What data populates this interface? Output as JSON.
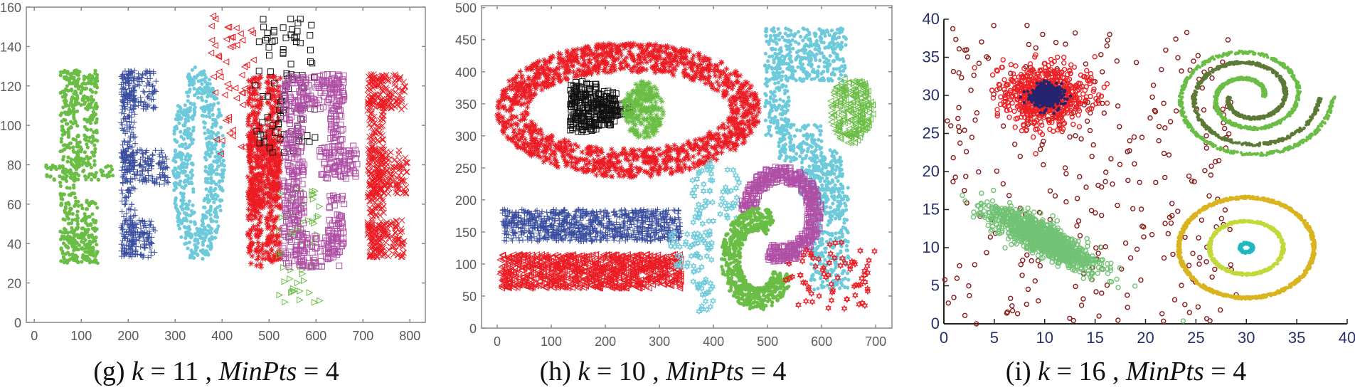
{
  "colors": {
    "frame": "#8a8a8a",
    "axis_dark": "#222222"
  },
  "chart_data": [
    {
      "id": "g",
      "type": "scatter",
      "caption": {
        "label": "(g)",
        "k_symbol": "k",
        "k_value": "11",
        "sep": ",",
        "minpts_symbol": "MinPts",
        "minpts_value": "4"
      },
      "xlim": [
        -17,
        833
      ],
      "ylim": [
        0,
        160
      ],
      "xticks": [
        0,
        100,
        200,
        300,
        400,
        500,
        600,
        700,
        800
      ],
      "yticks": [
        0,
        20,
        40,
        60,
        80,
        100,
        120,
        140,
        160
      ],
      "xtick_labels": [
        "0",
        "100",
        "200",
        "300",
        "400",
        "500",
        "600",
        "700",
        "800"
      ],
      "ytick_labels": [
        "0",
        "20",
        "40",
        "60",
        "80",
        "100",
        "120",
        "140",
        "160"
      ],
      "frame": "box",
      "grid": false,
      "legend": "none",
      "clusters": [
        {
          "color": "#6abd45",
          "marker": "dot",
          "points": 700,
          "shape": "rects",
          "rects": [
            [
              55,
              95,
              30,
              128
            ],
            [
              60,
              135,
              108,
              128
            ],
            [
              105,
              135,
              92,
              125
            ],
            [
              25,
              170,
              72,
              80
            ],
            [
              90,
              130,
              80,
              92
            ],
            [
              100,
              135,
              30,
              62
            ],
            [
              60,
              130,
              30,
              48
            ]
          ]
        },
        {
          "color": "#3a4ea0",
          "marker": "plus",
          "points": 650,
          "shape": "rects",
          "rects": [
            [
              185,
              215,
              33,
              128
            ],
            [
              185,
              260,
              108,
              128
            ],
            [
              185,
              285,
              70,
              88
            ],
            [
              185,
              258,
              33,
              52
            ]
          ]
        },
        {
          "color": "#6dcadb",
          "marker": "dot",
          "points": 650,
          "shape": "ring",
          "cx": 350,
          "cy": 80,
          "rx": 55,
          "ry": 50,
          "irx": 12,
          "iry": 33
        },
        {
          "color": "#ec1c24",
          "marker": "asterisk",
          "points": 700,
          "shape": "rects",
          "rects": [
            [
              455,
              485,
              28,
              125
            ],
            [
              495,
              525,
              30,
              125
            ],
            [
              455,
              525,
              58,
              95
            ],
            [
              485,
              500,
              30,
              40
            ]
          ]
        },
        {
          "color": "#ec1c24",
          "marker": "tri-left",
          "points": 55,
          "shape": "uniform",
          "x1": 375,
          "x2": 470,
          "y1": 85,
          "y2": 156
        },
        {
          "color": "#111111",
          "marker": "square",
          "points": 90,
          "shape": "uniform",
          "x1": 470,
          "x2": 600,
          "y1": 85,
          "y2": 156
        },
        {
          "color": "#6abd45",
          "marker": "tri-right",
          "points": 65,
          "shape": "uniform",
          "x1": 515,
          "x2": 610,
          "y1": 10,
          "y2": 68
        },
        {
          "color": "#b04fa6",
          "marker": "square",
          "points": 650,
          "shape": "rects",
          "rects": [
            [
              530,
              575,
              28,
              125
            ],
            [
              560,
              660,
              108,
              126
            ],
            [
              630,
              660,
              92,
              126
            ],
            [
              605,
              688,
              73,
              90
            ],
            [
              625,
              660,
              35,
              65
            ],
            [
              570,
              650,
              28,
              45
            ]
          ]
        },
        {
          "color": "#ec1c24",
          "marker": "cross",
          "points": 650,
          "shape": "rects",
          "rects": [
            [
              710,
              745,
              33,
              126
            ],
            [
              710,
              790,
              108,
              126
            ],
            [
              710,
              795,
              65,
              88
            ],
            [
              710,
              788,
              33,
              52
            ]
          ]
        }
      ]
    },
    {
      "id": "h",
      "type": "scatter",
      "caption": {
        "label": "(h)",
        "k_symbol": "k",
        "k_value": "10",
        "sep": ",",
        "minpts_symbol": "MinPts",
        "minpts_value": "4"
      },
      "xlim": [
        -29,
        730
      ],
      "ylim": [
        0,
        503
      ],
      "xticks": [
        0,
        100,
        200,
        300,
        400,
        500,
        600,
        700
      ],
      "yticks": [
        0,
        50,
        100,
        150,
        200,
        250,
        300,
        350,
        400,
        450,
        500
      ],
      "xtick_labels": [
        "0",
        "100",
        "200",
        "300",
        "400",
        "500",
        "600",
        "700"
      ],
      "ytick_labels": [
        "0",
        "50",
        "100",
        "150",
        "200",
        "250",
        "300",
        "350",
        "400",
        "450",
        "500"
      ],
      "frame": "box",
      "grid": false,
      "legend": "none",
      "clusters": [
        {
          "color": "#ec1c24",
          "marker": "asterisk",
          "points": 1500,
          "shape": "ring",
          "cx": 242,
          "cy": 340,
          "rx": 245,
          "ry": 105,
          "irx": 185,
          "iry": 60
        },
        {
          "color": "#111111",
          "marker": "square",
          "points": 300,
          "shape": "rects",
          "rects": [
            [
              135,
              185,
              305,
              385
            ],
            [
              185,
              220,
              315,
              370
            ],
            [
              215,
              245,
              330,
              350
            ]
          ]
        },
        {
          "color": "#6abd45",
          "marker": "asterisk",
          "points": 250,
          "shape": "ellipse",
          "cx": 270,
          "cy": 340,
          "rx": 38,
          "ry": 45
        },
        {
          "color": "#3a4ea0",
          "marker": "plus",
          "points": 900,
          "shape": "rects",
          "rects": [
            [
              10,
              340,
              135,
              185
            ]
          ]
        },
        {
          "color": "#ec1c24",
          "marker": "tri-left",
          "points": 900,
          "shape": "rects",
          "rects": [
            [
              5,
              340,
              62,
              115
            ]
          ]
        },
        {
          "color": "#6dcadb",
          "marker": "star",
          "points": 140,
          "shape": "rects",
          "rects": [
            [
              360,
              400,
              25,
              260
            ],
            [
              410,
              450,
              170,
              250
            ],
            [
              320,
              360,
              90,
              150
            ]
          ]
        },
        {
          "color": "#6dcadb",
          "marker": "dot",
          "points": 1100,
          "shape": "rects",
          "rects": [
            [
              495,
              645,
              385,
              468
            ],
            [
              495,
              540,
              300,
              390
            ],
            [
              520,
              600,
              260,
              320
            ],
            [
              560,
              640,
              200,
              280
            ],
            [
              580,
              650,
              60,
              220
            ]
          ]
        },
        {
          "color": "#6abd45",
          "marker": "tri-left",
          "points": 220,
          "shape": "ellipse",
          "cx": 655,
          "cy": 340,
          "rx": 40,
          "ry": 52
        },
        {
          "color": "#b04fa6",
          "marker": "square",
          "points": 500,
          "shape": "arc",
          "cx": 525,
          "cy": 178,
          "rx": 62,
          "ry": 62,
          "t": 26,
          "a0": -110,
          "a1": 175
        },
        {
          "color": "#6abd45",
          "marker": "dot",
          "points": 700,
          "shape": "arc",
          "cx": 482,
          "cy": 108,
          "rx": 50,
          "ry": 62,
          "t": 36,
          "a0": 60,
          "a1": 340
        },
        {
          "color": "#ec1c24",
          "marker": "star",
          "points": 70,
          "shape": "uniform",
          "x1": 520,
          "x2": 700,
          "y1": 25,
          "y2": 135
        }
      ]
    },
    {
      "id": "i",
      "type": "scatter",
      "caption": {
        "label": "(i)",
        "k_symbol": "k",
        "k_value": "16",
        "sep": ",",
        "minpts_symbol": "MinPts",
        "minpts_value": "4"
      },
      "xlim": [
        0,
        40
      ],
      "ylim": [
        0,
        40
      ],
      "xticks": [
        0,
        5,
        10,
        15,
        20,
        25,
        30,
        35,
        40
      ],
      "yticks": [
        0,
        5,
        10,
        15,
        20,
        25,
        30,
        35,
        40
      ],
      "xtick_labels": [
        "0",
        "5",
        "10",
        "15",
        "20",
        "25",
        "30",
        "35",
        "40"
      ],
      "ytick_labels": [
        "0",
        "5",
        "10",
        "15",
        "20",
        "25",
        "30",
        "35",
        "40"
      ],
      "frame": "axes",
      "grid": false,
      "legend": "none",
      "clusters": [
        {
          "color": "#8b1a1a",
          "marker": "circle",
          "points": 300,
          "shape": "uniform",
          "x1": 0,
          "x2": 29,
          "y1": 0,
          "y2": 40
        },
        {
          "color": "#ee2024",
          "marker": "circle",
          "points": 700,
          "shape": "gauss",
          "cx": 10,
          "cy": 30,
          "sa": 2.2,
          "sb": 2.0,
          "angle": 0
        },
        {
          "color": "#24256e",
          "marker": "dot",
          "points": 500,
          "shape": "gauss",
          "cx": 10.2,
          "cy": 30,
          "sa": 0.75,
          "sb": 0.7,
          "angle": 0
        },
        {
          "color": "#72c275",
          "marker": "circle",
          "points": 1100,
          "shape": "gauss",
          "cx": 9.8,
          "cy": 11.2,
          "sa": 3.2,
          "sb": 0.9,
          "angle": -37
        },
        {
          "color": "#6abd45",
          "marker": "dot",
          "points": 900,
          "shape": "spiral",
          "cx": 30.2,
          "cy": 29.8,
          "r0": 1.5,
          "b": 0.55,
          "th0": 0,
          "th1": 12.566,
          "t": 0.35
        },
        {
          "color": "#5b7a35",
          "marker": "dot",
          "points": 700,
          "shape": "spiral",
          "cx": 30.2,
          "cy": 29.8,
          "r0": 1.9,
          "b": 0.55,
          "th0": 3.1416,
          "th1": 12.566,
          "t": 0.35,
          "offset": 3.1416
        },
        {
          "color": "#d9b41e",
          "marker": "dot",
          "points": 900,
          "shape": "circle",
          "cx": 30,
          "cy": 10,
          "rx": 6.7,
          "ry": 6.6,
          "t": 0.35
        },
        {
          "color": "#c3d93a",
          "marker": "dot",
          "points": 500,
          "shape": "circle",
          "cx": 30,
          "cy": 10,
          "rx": 3.65,
          "ry": 3.5,
          "t": 0.3
        },
        {
          "color": "#1fb8c0",
          "marker": "dot",
          "points": 150,
          "shape": "circle",
          "cx": 30,
          "cy": 10,
          "rx": 0.6,
          "ry": 0.6,
          "t": 0.3
        }
      ]
    }
  ]
}
